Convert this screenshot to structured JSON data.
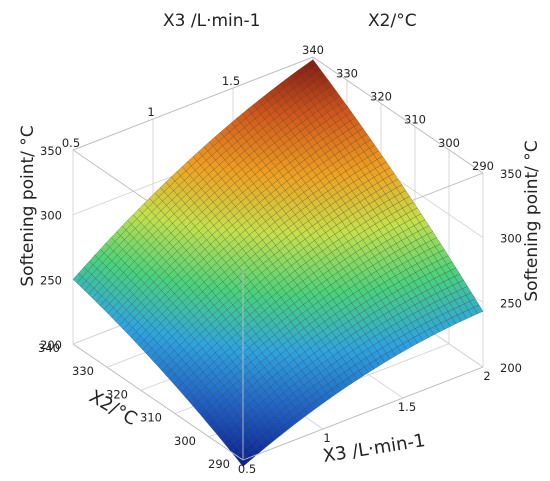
{
  "chart_data": {
    "type": "surface3d",
    "title": "",
    "x_axis": {
      "label": "X3 /L·min-1",
      "range": [
        0.5,
        2
      ],
      "ticks": [
        "0.5",
        "1",
        "1.5",
        "2"
      ]
    },
    "y_axis": {
      "label": "X2/°C",
      "range": [
        290,
        340
      ],
      "ticks": [
        "290",
        "300",
        "310",
        "320",
        "330",
        "340"
      ]
    },
    "z_axis": {
      "label": "Softening point/ °C",
      "range": [
        200,
        350
      ],
      "ticks": [
        "200",
        "250",
        "300",
        "350"
      ]
    },
    "top_x_ticks": [
      "0.5",
      "1",
      "1.5"
    ],
    "top_y_ticks": [
      "340",
      "330",
      "320",
      "310",
      "300",
      "290"
    ],
    "right_z_ticks": [
      "350",
      "300",
      "250",
      "200"
    ],
    "surface_corners": [
      {
        "X3": 0.5,
        "X2": 290,
        "softening_point": 195
      },
      {
        "X3": 2.0,
        "X2": 290,
        "softening_point": 243
      },
      {
        "X3": 0.5,
        "X2": 340,
        "softening_point": 250
      },
      {
        "X3": 2.0,
        "X2": 340,
        "softening_point": 348
      }
    ],
    "colormap": [
      "#081d8c",
      "#1f5fc4",
      "#2ea4e0",
      "#4ad37a",
      "#c4e14a",
      "#f0a020",
      "#d2561a",
      "#7a1410"
    ],
    "grid": true
  }
}
